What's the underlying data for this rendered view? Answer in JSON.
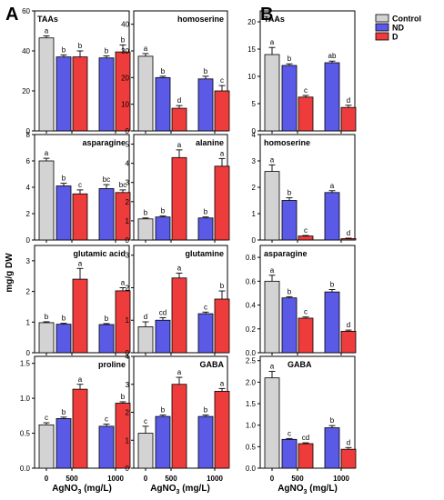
{
  "figure": {
    "panel_letters": [
      "A",
      "B"
    ],
    "shared_ylabel": "mg/g DW",
    "xlabel_prefix": "AgNO",
    "xlabel_sub": "3",
    "xlabel_suffix": " (mg/L)",
    "legend": [
      {
        "name": "Control",
        "color": "#d3d3d3"
      },
      {
        "name": "ND",
        "color": "#5a5ae6"
      },
      {
        "name": "D",
        "color": "#ee3b3b"
      }
    ]
  },
  "chart_data": [
    {
      "type": "bar",
      "panel": "A",
      "title": "TAAs",
      "categories": [
        "0",
        "500",
        "1000"
      ],
      "ylim": [
        0,
        60
      ],
      "yticks": [
        0,
        20,
        40,
        60
      ],
      "bars": [
        {
          "group": "Control",
          "value": 46.5,
          "err": 1.0,
          "letter": "a"
        },
        {
          "group": "ND",
          "value": 37,
          "err": 1.0,
          "letter": "b"
        },
        {
          "group": "D",
          "value": 37,
          "err": 3.0,
          "letter": "b"
        },
        {
          "group": "ND",
          "value": 36.5,
          "err": 1.0,
          "letter": "b"
        },
        {
          "group": "D",
          "value": 39.5,
          "err": 3.5,
          "letter": "b"
        }
      ]
    },
    {
      "type": "bar",
      "panel": "A",
      "title": "homoserine",
      "categories": [
        "0",
        "500",
        "1000"
      ],
      "ylim": [
        0,
        45
      ],
      "yticks": [
        0,
        10,
        20,
        30,
        40
      ],
      "bars": [
        {
          "group": "Control",
          "value": 28,
          "err": 1.0,
          "letter": "a"
        },
        {
          "group": "ND",
          "value": 20,
          "err": 0.5,
          "letter": "b"
        },
        {
          "group": "D",
          "value": 8.5,
          "err": 1.0,
          "letter": "d"
        },
        {
          "group": "ND",
          "value": 19.5,
          "err": 1.0,
          "letter": "b"
        },
        {
          "group": "D",
          "value": 15,
          "err": 2.0,
          "letter": "c"
        }
      ]
    },
    {
      "type": "bar",
      "panel": "B",
      "title": "TAAs",
      "categories": [
        "0",
        "500",
        "1000"
      ],
      "ylim": [
        0,
        22
      ],
      "yticks": [
        0,
        5,
        10,
        15,
        20
      ],
      "bars": [
        {
          "group": "Control",
          "value": 14,
          "err": 1.3,
          "letter": "a"
        },
        {
          "group": "ND",
          "value": 12,
          "err": 0.3,
          "letter": "b"
        },
        {
          "group": "D",
          "value": 6.2,
          "err": 0.3,
          "letter": "c"
        },
        {
          "group": "ND",
          "value": 12.5,
          "err": 0.3,
          "letter": "ab"
        },
        {
          "group": "D",
          "value": 4.3,
          "err": 0.4,
          "letter": "d"
        }
      ]
    },
    {
      "type": "bar",
      "panel": "A",
      "title": "asparagine",
      "categories": [
        "0",
        "500",
        "1000"
      ],
      "ylim": [
        0,
        8
      ],
      "yticks": [
        0,
        2,
        4,
        6,
        8
      ],
      "bars": [
        {
          "group": "Control",
          "value": 6.0,
          "err": 0.2,
          "letter": "a"
        },
        {
          "group": "ND",
          "value": 4.1,
          "err": 0.2,
          "letter": "b"
        },
        {
          "group": "D",
          "value": 3.5,
          "err": 0.3,
          "letter": "c"
        },
        {
          "group": "ND",
          "value": 3.9,
          "err": 0.3,
          "letter": "bc"
        },
        {
          "group": "D",
          "value": 3.6,
          "err": 0.2,
          "letter": "bc"
        }
      ]
    },
    {
      "type": "bar",
      "panel": "A",
      "title": "alanine",
      "categories": [
        "0",
        "500",
        "1000"
      ],
      "ylim": [
        0,
        5.5
      ],
      "yticks": [
        0,
        1,
        2,
        3,
        4,
        5
      ],
      "bars": [
        {
          "group": "Control",
          "value": 1.1,
          "err": 0.05,
          "letter": "b"
        },
        {
          "group": "ND",
          "value": 1.2,
          "err": 0.05,
          "letter": "b"
        },
        {
          "group": "D",
          "value": 4.3,
          "err": 0.4,
          "letter": "a"
        },
        {
          "group": "ND",
          "value": 1.15,
          "err": 0.05,
          "letter": "b"
        },
        {
          "group": "D",
          "value": 3.85,
          "err": 0.4,
          "letter": "a"
        }
      ]
    },
    {
      "type": "bar",
      "panel": "B",
      "title": "homoserine",
      "categories": [
        "0",
        "500",
        "1000"
      ],
      "ylim": [
        0,
        4
      ],
      "yticks": [
        0,
        1,
        2,
        3,
        4
      ],
      "bars": [
        {
          "group": "Control",
          "value": 2.6,
          "err": 0.25,
          "letter": "a"
        },
        {
          "group": "ND",
          "value": 1.5,
          "err": 0.1,
          "letter": "b"
        },
        {
          "group": "D",
          "value": 0.15,
          "err": 0.02,
          "letter": "c"
        },
        {
          "group": "ND",
          "value": 1.8,
          "err": 0.07,
          "letter": "a"
        },
        {
          "group": "D",
          "value": 0.05,
          "err": 0.02,
          "letter": "d"
        }
      ]
    },
    {
      "type": "bar",
      "panel": "A",
      "title": "glutamic acid",
      "categories": [
        "0",
        "500",
        "1000"
      ],
      "ylim": [
        0,
        3.5
      ],
      "yticks": [
        0,
        1,
        2,
        3
      ],
      "bars": [
        {
          "group": "Control",
          "value": 0.98,
          "err": 0.03,
          "letter": "b"
        },
        {
          "group": "ND",
          "value": 0.93,
          "err": 0.03,
          "letter": "b"
        },
        {
          "group": "D",
          "value": 2.4,
          "err": 0.35,
          "letter": "a"
        },
        {
          "group": "ND",
          "value": 0.92,
          "err": 0.03,
          "letter": "b"
        },
        {
          "group": "D",
          "value": 2.02,
          "err": 0.1,
          "letter": "a"
        }
      ]
    },
    {
      "type": "bar",
      "panel": "A",
      "title": "glutamine",
      "categories": [
        "0",
        "500",
        "1000"
      ],
      "ylim": [
        0,
        3.3
      ],
      "yticks": [
        0,
        1,
        2,
        3
      ],
      "bars": [
        {
          "group": "Control",
          "value": 0.8,
          "err": 0.15,
          "letter": "d"
        },
        {
          "group": "ND",
          "value": 1.0,
          "err": 0.08,
          "letter": "cd"
        },
        {
          "group": "D",
          "value": 2.3,
          "err": 0.15,
          "letter": "a"
        },
        {
          "group": "ND",
          "value": 1.2,
          "err": 0.05,
          "letter": "c"
        },
        {
          "group": "D",
          "value": 1.65,
          "err": 0.25,
          "letter": "b"
        }
      ]
    },
    {
      "type": "bar",
      "panel": "B",
      "title": "asparagine",
      "categories": [
        "0",
        "500",
        "1000"
      ],
      "ylim": [
        0,
        0.9
      ],
      "yticks": [
        0.0,
        0.2,
        0.4,
        0.6,
        0.8
      ],
      "bars": [
        {
          "group": "Control",
          "value": 0.6,
          "err": 0.05,
          "letter": "a"
        },
        {
          "group": "ND",
          "value": 0.46,
          "err": 0.01,
          "letter": "b"
        },
        {
          "group": "D",
          "value": 0.29,
          "err": 0.01,
          "letter": "c"
        },
        {
          "group": "ND",
          "value": 0.51,
          "err": 0.02,
          "letter": "b"
        },
        {
          "group": "D",
          "value": 0.18,
          "err": 0.01,
          "letter": "d"
        }
      ]
    },
    {
      "type": "bar",
      "panel": "A",
      "title": "proline",
      "categories": [
        "0",
        "500",
        "1000"
      ],
      "ylim": [
        0,
        1.6
      ],
      "yticks": [
        0.0,
        0.5,
        1.0,
        1.5
      ],
      "bars": [
        {
          "group": "Control",
          "value": 0.62,
          "err": 0.03,
          "letter": "c"
        },
        {
          "group": "ND",
          "value": 0.71,
          "err": 0.02,
          "letter": "b"
        },
        {
          "group": "D",
          "value": 1.13,
          "err": 0.07,
          "letter": "a"
        },
        {
          "group": "ND",
          "value": 0.6,
          "err": 0.03,
          "letter": "c"
        },
        {
          "group": "D",
          "value": 0.93,
          "err": 0.02,
          "letter": "b"
        }
      ]
    },
    {
      "type": "bar",
      "panel": "A",
      "title": "GABA",
      "categories": [
        "0",
        "500",
        "1000"
      ],
      "ylim": [
        0,
        4
      ],
      "yticks": [
        0,
        1,
        2,
        3,
        4
      ],
      "bars": [
        {
          "group": "Control",
          "value": 1.25,
          "err": 0.25,
          "letter": "c"
        },
        {
          "group": "ND",
          "value": 1.85,
          "err": 0.05,
          "letter": "b"
        },
        {
          "group": "D",
          "value": 3.0,
          "err": 0.25,
          "letter": "a"
        },
        {
          "group": "ND",
          "value": 1.85,
          "err": 0.05,
          "letter": "b"
        },
        {
          "group": "D",
          "value": 2.75,
          "err": 0.1,
          "letter": "a"
        }
      ]
    },
    {
      "type": "bar",
      "panel": "B",
      "title": "GABA",
      "categories": [
        "0",
        "500",
        "1000"
      ],
      "ylim": [
        0,
        2.6
      ],
      "yticks": [
        0.0,
        0.5,
        1.0,
        1.5,
        2.0,
        2.5
      ],
      "bars": [
        {
          "group": "Control",
          "value": 2.1,
          "err": 0.15,
          "letter": "a"
        },
        {
          "group": "ND",
          "value": 0.67,
          "err": 0.02,
          "letter": "c"
        },
        {
          "group": "D",
          "value": 0.57,
          "err": 0.02,
          "letter": "cd"
        },
        {
          "group": "ND",
          "value": 0.94,
          "err": 0.05,
          "letter": "b"
        },
        {
          "group": "D",
          "value": 0.44,
          "err": 0.04,
          "letter": "d"
        }
      ]
    }
  ]
}
